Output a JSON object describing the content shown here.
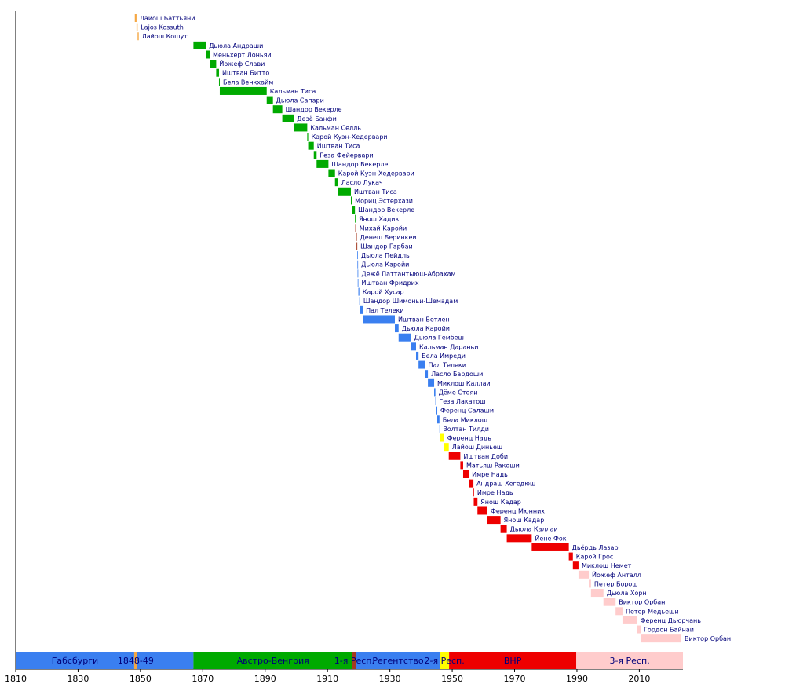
{
  "chart_data": {
    "type": "timeline",
    "title": "",
    "xlabel": "",
    "ylabel": "",
    "xlim": [
      1810,
      2024
    ],
    "ticks": [
      1810,
      1830,
      1850,
      1870,
      1890,
      1910,
      1930,
      1950,
      1970,
      1990,
      2010
    ],
    "colors": {
      "orange": "#f5a742",
      "green": "#00aa00",
      "brown": "#a33a20",
      "blue": "#3a7ff0",
      "yellow": "#ffff00",
      "red": "#ee0000",
      "pink": "#ffcccc",
      "label": "#00007a"
    },
    "eras": [
      {
        "label": "Габсбурги",
        "start": 1810,
        "end": 1848,
        "color": "blue"
      },
      {
        "label": "1848-49",
        "start": 1848,
        "end": 1849,
        "color": "orange"
      },
      {
        "label": "",
        "start": 1849,
        "end": 1867,
        "color": "blue"
      },
      {
        "label": "Австро-Венгрия",
        "start": 1867,
        "end": 1918,
        "color": "green"
      },
      {
        "label": "1-я Респ.",
        "start": 1918,
        "end": 1919.2,
        "color": "brown"
      },
      {
        "label": "Регентство",
        "start": 1919.2,
        "end": 1946,
        "color": "blue"
      },
      {
        "label": "2-я Респ.",
        "start": 1946,
        "end": 1949,
        "color": "yellow"
      },
      {
        "label": "ВНР",
        "start": 1949,
        "end": 1989.8,
        "color": "red"
      },
      {
        "label": "3-я Респ.",
        "start": 1989.8,
        "end": 2024,
        "color": "pink"
      }
    ],
    "ministers": [
      {
        "name": "Лайош Баттьяни",
        "start": 1848.2,
        "end": 1848.75,
        "color": "orange"
      },
      {
        "name": "Lajos Kossuth",
        "start": 1848.75,
        "end": 1849.1,
        "color": "orange"
      },
      {
        "name": "Лайош Кошут",
        "start": 1849.1,
        "end": 1849.45,
        "color": "orange"
      },
      {
        "name": "Дьюла Андраши",
        "start": 1867,
        "end": 1871,
        "color": "green"
      },
      {
        "name": "Меньхерт Лоньяи",
        "start": 1871,
        "end": 1872.2,
        "color": "green"
      },
      {
        "name": "Йожеф Слави",
        "start": 1872.2,
        "end": 1874.3,
        "color": "green"
      },
      {
        "name": "Иштван Битто",
        "start": 1874.3,
        "end": 1875.2,
        "color": "green"
      },
      {
        "name": "Бела Венкхайм",
        "start": 1875.2,
        "end": 1875.45,
        "color": "green"
      },
      {
        "name": "Кальман Тиса",
        "start": 1875.45,
        "end": 1890.5,
        "color": "green"
      },
      {
        "name": "Дьюла Сапари",
        "start": 1890.5,
        "end": 1892.5,
        "color": "green"
      },
      {
        "name": "Шандор Векерле",
        "start": 1892.5,
        "end": 1895.5,
        "color": "green"
      },
      {
        "name": "Дезё Банфи",
        "start": 1895.5,
        "end": 1899.2,
        "color": "green"
      },
      {
        "name": "Кальман Селль",
        "start": 1899.2,
        "end": 1903.5,
        "color": "green"
      },
      {
        "name": "Карой Куэн-Хедервари",
        "start": 1903.5,
        "end": 1903.8,
        "color": "green"
      },
      {
        "name": "Иштван Тиса",
        "start": 1903.8,
        "end": 1905.6,
        "color": "green"
      },
      {
        "name": "Геза Фейервари",
        "start": 1905.6,
        "end": 1906.5,
        "color": "green"
      },
      {
        "name": "Шандор Векерле",
        "start": 1906.5,
        "end": 1910.3,
        "color": "green"
      },
      {
        "name": "Карой Куэн-Хедервари",
        "start": 1910.3,
        "end": 1912.4,
        "color": "green"
      },
      {
        "name": "Ласло Лукач",
        "start": 1912.4,
        "end": 1913.4,
        "color": "green"
      },
      {
        "name": "Иштван Тиса",
        "start": 1913.4,
        "end": 1917.5,
        "color": "green"
      },
      {
        "name": "Мориц Эстерхази",
        "start": 1917.5,
        "end": 1917.8,
        "color": "green"
      },
      {
        "name": "Шандор Векерле",
        "start": 1917.8,
        "end": 1918.8,
        "color": "green"
      },
      {
        "name": "Янош Хадик",
        "start": 1918.8,
        "end": 1918.9,
        "color": "green"
      },
      {
        "name": "Михай Каройи",
        "start": 1918.9,
        "end": 1919.2,
        "color": "brown"
      },
      {
        "name": "Денеш Беринкеи",
        "start": 1919.2,
        "end": 1919.3,
        "color": "brown"
      },
      {
        "name": "Шандор Гарбаи",
        "start": 1919.3,
        "end": 1919.55,
        "color": "brown"
      },
      {
        "name": "Дьюла Пейдль",
        "start": 1919.55,
        "end": 1919.6,
        "color": "blue"
      },
      {
        "name": "Дьюла Каройи",
        "start": 1919.6,
        "end": 1919.65,
        "color": "blue"
      },
      {
        "name": "Дежё Паттантыюш-Абрахам",
        "start": 1919.65,
        "end": 1919.7,
        "color": "blue"
      },
      {
        "name": "Иштван Фридрих",
        "start": 1919.7,
        "end": 1919.9,
        "color": "blue"
      },
      {
        "name": "Карой Хусар",
        "start": 1919.9,
        "end": 1920.2,
        "color": "blue"
      },
      {
        "name": "Шандор Шимоньи-Шемадам",
        "start": 1920.2,
        "end": 1920.5,
        "color": "blue"
      },
      {
        "name": "Пал Телеки",
        "start": 1920.5,
        "end": 1921.3,
        "color": "blue"
      },
      {
        "name": "Иштван Бетлен",
        "start": 1921.3,
        "end": 1931.6,
        "color": "blue"
      },
      {
        "name": "Дьюла Каройи",
        "start": 1931.6,
        "end": 1932.8,
        "color": "blue"
      },
      {
        "name": "Дьюла Гёмбёш",
        "start": 1932.8,
        "end": 1936.8,
        "color": "blue"
      },
      {
        "name": "Кальман Дараньи",
        "start": 1936.8,
        "end": 1938.4,
        "color": "blue"
      },
      {
        "name": "Бела Имреди",
        "start": 1938.4,
        "end": 1939.2,
        "color": "blue"
      },
      {
        "name": "Пал Телеки",
        "start": 1939.2,
        "end": 1941.3,
        "color": "blue"
      },
      {
        "name": "Ласло Бардоши",
        "start": 1941.3,
        "end": 1942.2,
        "color": "blue"
      },
      {
        "name": "Миклош Каллаи",
        "start": 1942.2,
        "end": 1944.2,
        "color": "blue"
      },
      {
        "name": "Дёме Стояи",
        "start": 1944.2,
        "end": 1944.6,
        "color": "blue"
      },
      {
        "name": "Геза Лакатош",
        "start": 1944.6,
        "end": 1944.8,
        "color": "blue"
      },
      {
        "name": "Ференц Салаши",
        "start": 1944.8,
        "end": 1945.2,
        "color": "blue"
      },
      {
        "name": "Бела Миклош",
        "start": 1945.2,
        "end": 1945.9,
        "color": "blue"
      },
      {
        "name": "Золтан Тилди",
        "start": 1945.9,
        "end": 1946.1,
        "color": "blue"
      },
      {
        "name": "Ференц Надь",
        "start": 1946.1,
        "end": 1947.4,
        "color": "yellow"
      },
      {
        "name": "Лайош Диньеш",
        "start": 1947.4,
        "end": 1948.9,
        "color": "yellow"
      },
      {
        "name": "Иштван Доби",
        "start": 1948.9,
        "end": 1952.6,
        "color": "red"
      },
      {
        "name": "Матьяш Ракоши",
        "start": 1952.6,
        "end": 1953.5,
        "color": "red"
      },
      {
        "name": "Имре Надь",
        "start": 1953.5,
        "end": 1955.3,
        "color": "red"
      },
      {
        "name": "Андраш Хегедюш",
        "start": 1955.3,
        "end": 1956.8,
        "color": "red"
      },
      {
        "name": "Имре Надь",
        "start": 1956.8,
        "end": 1956.9,
        "color": "red"
      },
      {
        "name": "Янош Кадар",
        "start": 1956.9,
        "end": 1958.1,
        "color": "red"
      },
      {
        "name": "Ференц Мюнних",
        "start": 1958.1,
        "end": 1961.3,
        "color": "red"
      },
      {
        "name": "Янош Кадар",
        "start": 1961.3,
        "end": 1965.5,
        "color": "red"
      },
      {
        "name": "Дьюла Каллаи",
        "start": 1965.5,
        "end": 1967.5,
        "color": "red"
      },
      {
        "name": "Йенё Фок",
        "start": 1967.5,
        "end": 1975.5,
        "color": "red"
      },
      {
        "name": "Дьёрдь Лазар",
        "start": 1975.5,
        "end": 1987.4,
        "color": "red"
      },
      {
        "name": "Карой Грос",
        "start": 1987.4,
        "end": 1988.7,
        "color": "red"
      },
      {
        "name": "Миклош Немет",
        "start": 1988.7,
        "end": 1990.5,
        "color": "red"
      },
      {
        "name": "Йожеф Анталл",
        "start": 1990.5,
        "end": 1993.8,
        "color": "pink"
      },
      {
        "name": "Петер Борош",
        "start": 1993.8,
        "end": 1994.5,
        "color": "pink"
      },
      {
        "name": "Дьюла Хорн",
        "start": 1994.5,
        "end": 1998.5,
        "color": "pink"
      },
      {
        "name": "Виктор Орбан",
        "start": 1998.5,
        "end": 2002.4,
        "color": "pink"
      },
      {
        "name": "Петер Медьеши",
        "start": 2002.4,
        "end": 2004.6,
        "color": "pink"
      },
      {
        "name": "Ференц Дьюрчань",
        "start": 2004.6,
        "end": 2009.3,
        "color": "pink"
      },
      {
        "name": "Гордон Байнаи",
        "start": 2009.3,
        "end": 2010.4,
        "color": "pink"
      },
      {
        "name": "Виктор Орбан",
        "start": 2010.4,
        "end": 2023.5,
        "color": "pink"
      }
    ]
  }
}
